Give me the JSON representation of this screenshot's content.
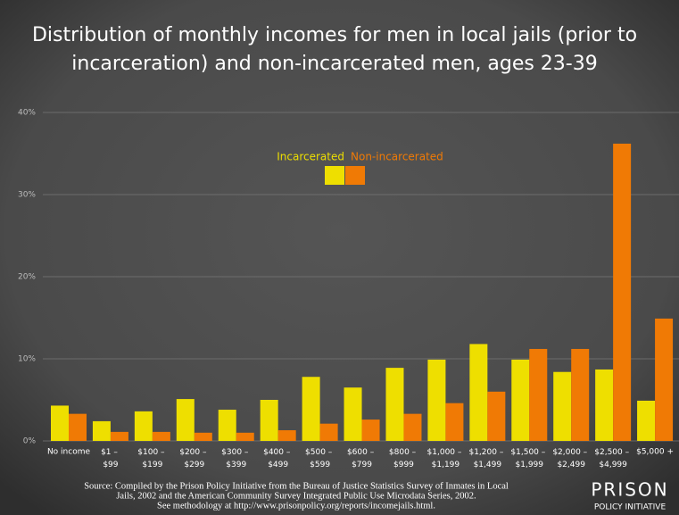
{
  "chart_data": {
    "type": "bar",
    "title": [
      "Distribution of monthly incomes for men in local jails (prior to",
      "incarceration) and non-incarcerated men, ages 23-39"
    ],
    "categories": [
      "No income",
      "$1 – $99",
      "$100 – $199",
      "$200 – $299",
      "$300 – $399",
      "$400 – $499",
      "$500 – $599",
      "$600 – $799",
      "$800 – $999",
      "$1,000 – $1,199",
      "$1,200 – $1,499",
      "$1,500 – $1,999",
      "$2,000 – $2,499",
      "$2,500 – $4,999",
      "$5,000 +"
    ],
    "series": [
      {
        "name": "Incarcerated",
        "color": "#eedf00",
        "values": [
          4.3,
          2.4,
          3.6,
          5.1,
          3.8,
          5.0,
          7.8,
          6.5,
          8.9,
          9.9,
          11.8,
          9.9,
          8.4,
          8.7,
          4.9
        ]
      },
      {
        "name": "Non-incarcerated",
        "color": "#f07a05",
        "values": [
          3.3,
          1.1,
          1.1,
          1.0,
          1.0,
          1.3,
          2.1,
          2.6,
          3.3,
          4.6,
          6.0,
          11.2,
          11.2,
          36.2,
          14.9
        ]
      }
    ],
    "ylim": [
      0,
      40
    ],
    "yticks": [
      {
        "value": 0,
        "label": "0%"
      },
      {
        "value": 10,
        "label": "10%"
      },
      {
        "value": 20,
        "label": "20%"
      },
      {
        "value": 30,
        "label": "30%"
      },
      {
        "value": 40,
        "label": "40%"
      }
    ],
    "grid": true,
    "source": [
      "Source: Compiled by the Prison Policy Initiative from the Bureau of Justice Statistics Survey of Inmates in Local",
      "Jails, 2002 and the American Community Survey Integrated Public Use Microdata Series, 2002.",
      "See methodology at http://www.prisonpolicy.org/reports/incomejails.html."
    ],
    "logo": [
      "PRISON",
      "POLICY INITIATIVE"
    ]
  }
}
